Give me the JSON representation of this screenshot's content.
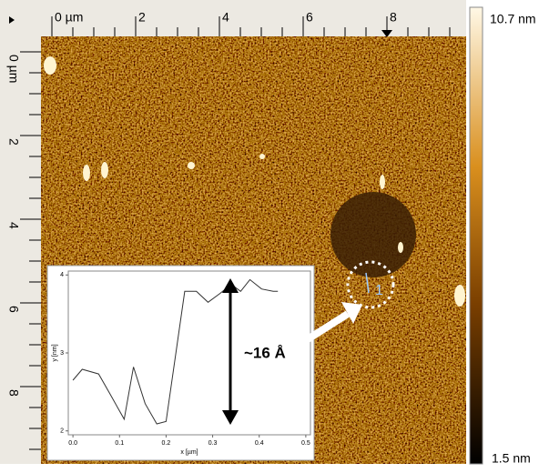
{
  "afm_image": {
    "top_ruler": [
      "0 µm",
      "2",
      "4",
      "6",
      "8"
    ],
    "left_ruler": [
      "0 µm",
      "2",
      "4",
      "6",
      "8"
    ],
    "colorbar_max": "10.7 nm",
    "colorbar_min": "1.5 nm",
    "marker_label": "1"
  },
  "chart_data": {
    "type": "line",
    "x_label": "x [µm]",
    "y_label": "y [nm]",
    "annotation": "~16 Å",
    "color": "#333333",
    "x": [
      0.0,
      0.02,
      0.055,
      0.08,
      0.11,
      0.13,
      0.155,
      0.18,
      0.2,
      0.24,
      0.265,
      0.29,
      0.315,
      0.34,
      0.36,
      0.38,
      0.405,
      0.43,
      0.44
    ],
    "values": [
      2.65,
      2.79,
      2.73,
      2.47,
      2.15,
      2.82,
      2.35,
      2.09,
      2.12,
      3.79,
      3.79,
      3.65,
      3.76,
      3.88,
      3.79,
      3.94,
      3.82,
      3.79,
      3.79
    ],
    "xlim": [
      -0.01,
      0.51
    ],
    "ylim": [
      1.95,
      4.05
    ],
    "xticks": [
      {
        "value": 0.0,
        "label": "0.0"
      },
      0.1,
      0.2,
      0.3,
      0.4,
      0.5
    ],
    "yticks": [
      2,
      3,
      4
    ]
  }
}
